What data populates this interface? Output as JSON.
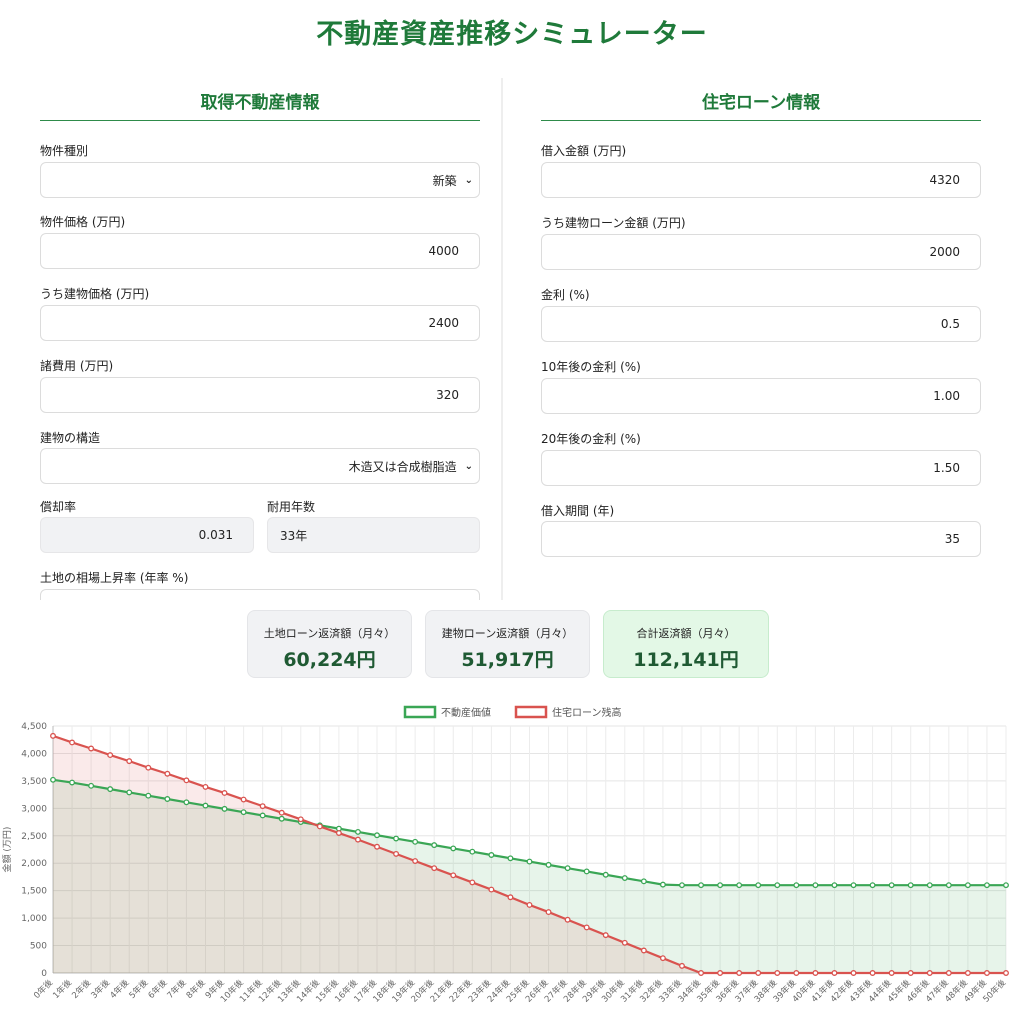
{
  "title": "不動産資産推移シミュレーター",
  "left_panel": {
    "title": "取得不動産情報",
    "property_type": {
      "label": "物件種別",
      "value": "新築"
    },
    "property_price": {
      "label": "物件価格 (万円)",
      "value": "4000"
    },
    "building_price": {
      "label": "うち建物価格 (万円)",
      "value": "2400"
    },
    "expenses": {
      "label": "諸費用 (万円)",
      "value": "320"
    },
    "structure": {
      "label": "建物の構造",
      "value": "木造又は合成樹脂造"
    },
    "depreciation_rate": {
      "label": "償却率",
      "value": "0.031"
    },
    "useful_life": {
      "label": "耐用年数",
      "value": "33年"
    },
    "land_rate": {
      "label": "土地の相場上昇率 (年率 %)",
      "value": ""
    }
  },
  "right_panel": {
    "title": "住宅ローン情報",
    "loan_amount": {
      "label": "借入金額 (万円)",
      "value": "4320"
    },
    "building_loan": {
      "label": "うち建物ローン金額 (万円)",
      "value": "2000"
    },
    "interest": {
      "label": "金利 (%)",
      "value": "0.5"
    },
    "interest_10y": {
      "label": "10年後の金利 (%)",
      "value": "1.00"
    },
    "interest_20y": {
      "label": "20年後の金利 (%)",
      "value": "1.50"
    },
    "period": {
      "label": "借入期間 (年)",
      "value": "35"
    }
  },
  "summary": {
    "land": {
      "label": "土地ローン返済額（月々）",
      "value": "60,224円"
    },
    "building": {
      "label": "建物ローン返済額（月々）",
      "value": "51,917円"
    },
    "total": {
      "label": "合計返済額（月々）",
      "value": "112,141円"
    }
  },
  "colors": {
    "accent": "#1f7a3a",
    "property_series": "#3aa655",
    "loan_series": "#d9534f"
  },
  "chart_data": {
    "type": "line",
    "ylabel": "金額 (万円)",
    "ylim": [
      0,
      4500
    ],
    "yticks": [
      "0",
      "500",
      "1,000",
      "1,500",
      "2,000",
      "2,500",
      "3,000",
      "3,500",
      "4,000",
      "4,500"
    ],
    "ytick_values": [
      0,
      500,
      1000,
      1500,
      2000,
      2500,
      3000,
      3500,
      4000,
      4500
    ],
    "legend_position": "top-center",
    "grid": true,
    "categories": [
      "0年後",
      "1年後",
      "2年後",
      "3年後",
      "4年後",
      "5年後",
      "6年後",
      "7年後",
      "8年後",
      "9年後",
      "10年後",
      "11年後",
      "12年後",
      "13年後",
      "14年後",
      "15年後",
      "16年後",
      "17年後",
      "18年後",
      "19年後",
      "20年後",
      "21年後",
      "22年後",
      "23年後",
      "24年後",
      "25年後",
      "26年後",
      "27年後",
      "28年後",
      "29年後",
      "30年後",
      "31年後",
      "32年後",
      "33年後",
      "34年後",
      "35年後",
      "36年後",
      "37年後",
      "38年後",
      "39年後",
      "40年後",
      "41年後",
      "42年後",
      "43年後",
      "44年後",
      "45年後",
      "46年後",
      "47年後",
      "48年後",
      "49年後",
      "50年後"
    ],
    "series": [
      {
        "name": "不動産価値",
        "color": "#3aa655",
        "values": [
          3520,
          3470,
          3410,
          3350,
          3290,
          3230,
          3170,
          3110,
          3050,
          2990,
          2930,
          2870,
          2810,
          2750,
          2690,
          2630,
          2570,
          2510,
          2450,
          2390,
          2330,
          2270,
          2210,
          2150,
          2090,
          2030,
          1970,
          1910,
          1850,
          1790,
          1730,
          1670,
          1610,
          1600,
          1600,
          1600,
          1600,
          1600,
          1600,
          1600,
          1600,
          1600,
          1600,
          1600,
          1600,
          1600,
          1600,
          1600,
          1600,
          1600,
          1600
        ]
      },
      {
        "name": "住宅ローン残高",
        "color": "#d9534f",
        "values": [
          4320,
          4200,
          4090,
          3970,
          3860,
          3740,
          3630,
          3510,
          3390,
          3280,
          3160,
          3040,
          2920,
          2800,
          2670,
          2550,
          2430,
          2300,
          2170,
          2040,
          1910,
          1780,
          1650,
          1520,
          1380,
          1240,
          1110,
          970,
          830,
          690,
          550,
          410,
          270,
          130,
          0,
          0,
          0,
          0,
          0,
          0,
          0,
          0,
          0,
          0,
          0,
          0,
          0,
          0,
          0,
          0,
          0
        ]
      }
    ]
  }
}
